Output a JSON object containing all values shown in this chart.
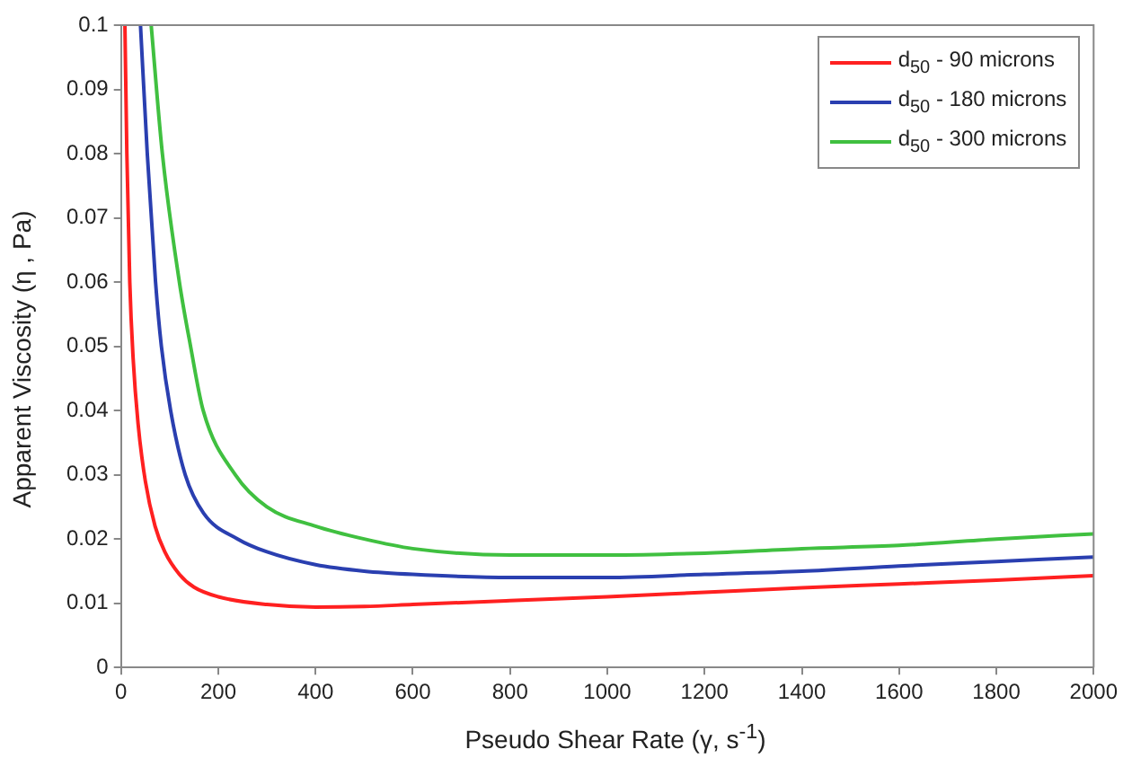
{
  "chart_data": {
    "type": "line",
    "xlabel": "Pseudo Shear Rate (γ, s$^{-1}$)",
    "ylabel": "Apparent Viscosity (η , Pa)",
    "xlim": [
      0,
      2000
    ],
    "xticks": [
      0,
      200,
      400,
      600,
      800,
      1000,
      1200,
      1400,
      1600,
      1800,
      2000
    ],
    "ylim": [
      0,
      0.1
    ],
    "yticks": [
      0,
      0.01,
      0.02,
      0.03,
      0.04,
      0.05,
      0.06,
      0.07,
      0.08,
      0.09,
      0.1
    ],
    "grid": false,
    "legend": "top right",
    "marker": "none",
    "line_style": "solid",
    "series": [
      {
        "name": "d$_{50}$ - 90 microns",
        "color": "#ff2020",
        "x": [
          8,
          12,
          18,
          25,
          35,
          50,
          70,
          90,
          120,
          150,
          200,
          300,
          400,
          500,
          600,
          800,
          1000,
          1200,
          1400,
          1600,
          1800,
          2000
        ],
        "values": [
          0.1,
          0.08,
          0.06,
          0.048,
          0.038,
          0.029,
          0.022,
          0.018,
          0.0145,
          0.0125,
          0.011,
          0.0098,
          0.0094,
          0.0095,
          0.0098,
          0.0104,
          0.011,
          0.0117,
          0.0124,
          0.013,
          0.0136,
          0.0143
        ]
      },
      {
        "name": "d$_{50}$ - 180 microns",
        "color": "#2a3fb0",
        "x": [
          40,
          54,
          71,
          83,
          102,
          132,
          170,
          240,
          300,
          400,
          500,
          600,
          800,
          1000,
          1200,
          1400,
          1600,
          1800,
          2000
        ],
        "values": [
          0.1,
          0.08,
          0.06,
          0.05,
          0.04,
          0.03,
          0.024,
          0.02,
          0.018,
          0.016,
          0.015,
          0.0145,
          0.014,
          0.014,
          0.0145,
          0.015,
          0.0158,
          0.0165,
          0.0172
        ]
      },
      {
        "name": "d$_{50}$ - 300 microns",
        "color": "#40c040",
        "x": [
          62,
          85,
          120,
          143,
          169,
          235,
          300,
          400,
          500,
          600,
          800,
          1000,
          1200,
          1400,
          1600,
          1800,
          2000
        ],
        "values": [
          0.1,
          0.08,
          0.06,
          0.05,
          0.04,
          0.03,
          0.025,
          0.022,
          0.02,
          0.0185,
          0.0175,
          0.0175,
          0.0178,
          0.0185,
          0.019,
          0.02,
          0.0208
        ]
      }
    ]
  }
}
